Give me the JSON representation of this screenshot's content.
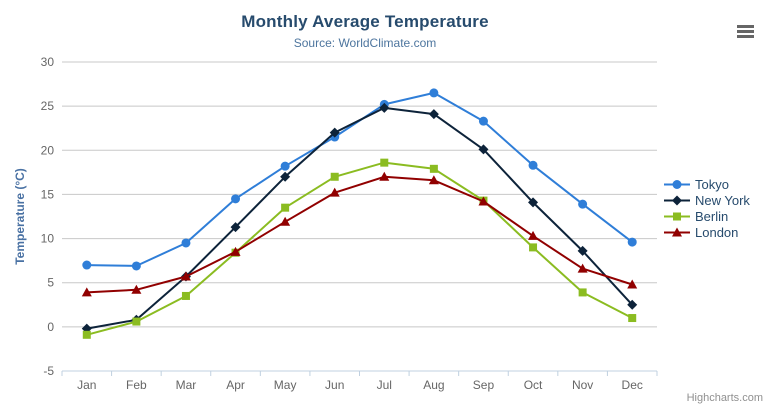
{
  "header": {
    "title": "Monthly Average Temperature",
    "subtitle": "Source: WorldClimate.com"
  },
  "credits": "Highcharts.com",
  "colors": {
    "title": "#274b6d",
    "subtitle": "#4d759e",
    "axis_labels": "#666666",
    "grid_line": "#c8c8c8",
    "x_axis_line": "#c0d0e0",
    "y_axis_title": "#4971a3",
    "legend_text": "#274b6d",
    "credits_text": "#909090",
    "menu_icon": "#666666"
  },
  "chart_data": {
    "type": "line",
    "title": "Monthly Average Temperature",
    "subtitle": "Source: WorldClimate.com",
    "xlabel": "",
    "ylabel": "Temperature (°C)",
    "categories": [
      "Jan",
      "Feb",
      "Mar",
      "Apr",
      "May",
      "Jun",
      "Jul",
      "Aug",
      "Sep",
      "Oct",
      "Nov",
      "Dec"
    ],
    "ylim": [
      -5,
      30
    ],
    "ytick_step": 5,
    "grid": true,
    "legend_position": "right-middle",
    "series": [
      {
        "name": "Tokyo",
        "color": "#2f7ed8",
        "marker": "circle",
        "values": [
          7.0,
          6.9,
          9.5,
          14.5,
          18.2,
          21.5,
          25.2,
          26.5,
          23.3,
          18.3,
          13.9,
          9.6
        ]
      },
      {
        "name": "New York",
        "color": "#0d233a",
        "marker": "diamond",
        "values": [
          -0.2,
          0.8,
          5.7,
          11.3,
          17.0,
          22.0,
          24.8,
          24.1,
          20.1,
          14.1,
          8.6,
          2.5
        ]
      },
      {
        "name": "Berlin",
        "color": "#8bbc21",
        "marker": "square",
        "values": [
          -0.9,
          0.6,
          3.5,
          8.4,
          13.5,
          17.0,
          18.6,
          17.9,
          14.3,
          9.0,
          3.9,
          1.0
        ]
      },
      {
        "name": "London",
        "color": "#910000",
        "marker": "triangle",
        "values": [
          3.9,
          4.2,
          5.7,
          8.5,
          11.9,
          15.2,
          17.0,
          16.6,
          14.2,
          10.3,
          6.6,
          4.8
        ]
      }
    ]
  }
}
